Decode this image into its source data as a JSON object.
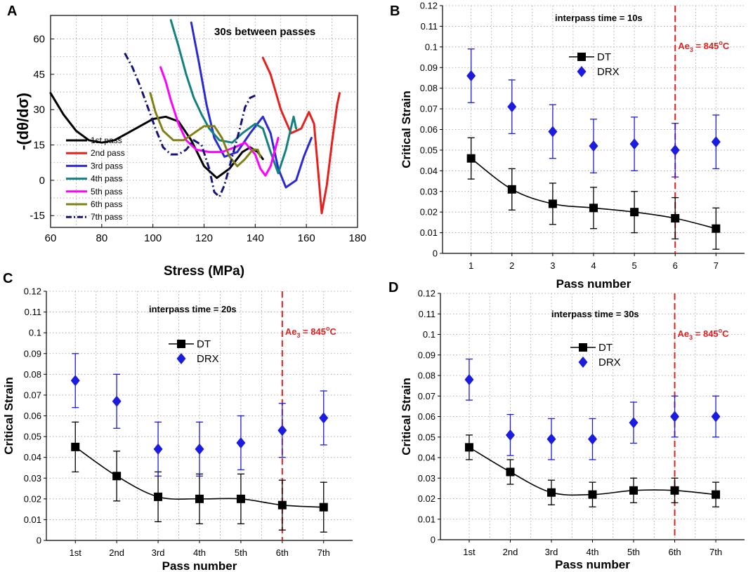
{
  "chart_data": [
    {
      "panel": "A",
      "type": "line",
      "title": "30s between passes",
      "xlabel": "Stress (MPa)",
      "ylabel": "-(dθ/dσ)",
      "xlim": [
        60,
        180
      ],
      "ylim": [
        -20,
        70
      ],
      "xticks": [
        "60",
        "80",
        "100",
        "120",
        "140",
        "160",
        "180"
      ],
      "yticks": [
        "-15",
        "0",
        "15",
        "30",
        "45",
        "60"
      ],
      "grid": true,
      "legend_position": "bottom-left",
      "series": [
        {
          "name": "1st pass",
          "color": "#000000",
          "dash": "solid",
          "x": [
            60,
            65,
            70,
            75,
            80,
            85,
            90,
            95,
            100,
            105,
            110,
            115,
            120,
            125,
            130,
            135,
            138,
            141,
            143
          ],
          "y": [
            37,
            28,
            21,
            17,
            16,
            17,
            20,
            23,
            26,
            27,
            25,
            17,
            6,
            1,
            5,
            12,
            14,
            12,
            9
          ]
        },
        {
          "name": "2nd pass",
          "color": "#e8201c",
          "dash": "solid",
          "x": [
            143,
            146,
            150,
            154,
            158,
            161,
            163,
            164.5,
            166,
            168,
            170,
            172,
            173
          ],
          "y": [
            52,
            45,
            30,
            20,
            22,
            29,
            24,
            5,
            -14,
            -2,
            16,
            32,
            37
          ]
        },
        {
          "name": "3rd pass",
          "color": "#2a2ad4",
          "dash": "solid",
          "x": [
            115,
            118,
            121,
            124,
            128,
            133,
            138,
            143,
            146,
            149,
            152,
            156,
            159,
            162
          ],
          "y": [
            67,
            50,
            32,
            18,
            10,
            12,
            20,
            27,
            20,
            5,
            -3,
            0,
            10,
            18
          ]
        },
        {
          "name": "4th pass",
          "color": "#138080",
          "dash": "solid",
          "x": [
            107,
            110,
            113,
            116,
            119,
            122,
            126,
            131,
            135,
            140,
            143,
            146,
            149,
            152,
            155,
            156
          ],
          "y": [
            68,
            57,
            45,
            35,
            28,
            22,
            17,
            16,
            20,
            24,
            22,
            12,
            3,
            13,
            27,
            22
          ]
        },
        {
          "name": "5th pass",
          "color": "#ff00ff",
          "dash": "solid",
          "x": [
            103,
            105,
            107,
            110,
            113,
            117,
            122,
            127,
            132,
            136,
            140,
            142,
            144,
            146,
            149
          ],
          "y": [
            48,
            42,
            34,
            24,
            17,
            13,
            12,
            12,
            14,
            16,
            11,
            5,
            2,
            6,
            18
          ]
        },
        {
          "name": "6th pass",
          "color": "#808014",
          "dash": "solid",
          "x": [
            99,
            101,
            104,
            108,
            112,
            116,
            120,
            124,
            127,
            130,
            133,
            136,
            139,
            141,
            142
          ],
          "y": [
            37,
            29,
            21,
            17,
            17,
            20,
            23,
            23,
            18,
            10,
            6,
            9,
            13,
            13,
            10
          ]
        },
        {
          "name": "7th pass",
          "color": "#14147a",
          "dash": "dashdot",
          "x": [
            89,
            92,
            95,
            98,
            101,
            104,
            107,
            110,
            113,
            116,
            119,
            122,
            124,
            126,
            128,
            131,
            134,
            136,
            138,
            140
          ],
          "y": [
            54,
            48,
            40,
            31,
            22,
            14,
            11,
            11,
            13,
            17,
            15,
            5,
            -5,
            -7,
            -2,
            10,
            22,
            31,
            35,
            36
          ]
        }
      ]
    },
    {
      "panel": "B",
      "type": "scatter",
      "annotation": "interpass time = 10s",
      "xlabel": "Pass number",
      "ylabel": "Critical Strain",
      "categories": [
        "1",
        "2",
        "3",
        "4",
        "5",
        "6",
        "7"
      ],
      "ylim": [
        0,
        0.12
      ],
      "yticks": [
        "0",
        "0.01",
        "0.02",
        "0.03",
        "0.04",
        "0.05",
        "0.06",
        "0.07",
        "0.08",
        "0.09",
        "0.1",
        "0.11",
        "0.12"
      ],
      "grid": true,
      "legend_position": "top-center",
      "ae3_line_at": 6,
      "ae3_label_main": "Ae",
      "ae3_label_sub": "3",
      "ae3_label_rest": " = 845",
      "ae3_label_sup": "o",
      "ae3_label_end": "C",
      "series": [
        {
          "name": "DT",
          "color": "#000000",
          "marker": "square",
          "line": true,
          "values": [
            0.046,
            0.031,
            0.024,
            0.022,
            0.02,
            0.017,
            0.012
          ],
          "errors": [
            0.01,
            0.01,
            0.01,
            0.01,
            0.01,
            0.01,
            0.01
          ]
        },
        {
          "name": "DRX",
          "color": "#1c1ce0",
          "marker": "diamond",
          "line": false,
          "values": [
            0.086,
            0.071,
            0.059,
            0.052,
            0.053,
            0.05,
            0.054
          ],
          "errors": [
            0.013,
            0.013,
            0.013,
            0.013,
            0.013,
            0.013,
            0.013
          ]
        }
      ]
    },
    {
      "panel": "C",
      "type": "scatter",
      "annotation": "interpass time = 20s",
      "xlabel": "Pass number",
      "ylabel": "Critical Strain",
      "categories": [
        "1st",
        "2nd",
        "3rd",
        "4th",
        "5th",
        "6th",
        "7th"
      ],
      "ylim": [
        0,
        0.12
      ],
      "yticks": [
        "0",
        "0.01",
        "0.02",
        "0.03",
        "0.04",
        "0.05",
        "0.06",
        "0.07",
        "0.08",
        "0.09",
        "0.1",
        "0.11",
        "0.12"
      ],
      "grid": true,
      "legend_position": "top-center",
      "ae3_line_at": 6,
      "ae3_label_main": "Ae",
      "ae3_label_sub": "3",
      "ae3_label_rest": " = 845",
      "ae3_label_sup": "o",
      "ae3_label_end": "C",
      "series": [
        {
          "name": "DT",
          "color": "#000000",
          "marker": "square",
          "line": true,
          "values": [
            0.045,
            0.031,
            0.021,
            0.02,
            0.02,
            0.017,
            0.016
          ],
          "errors": [
            0.012,
            0.012,
            0.012,
            0.012,
            0.012,
            0.012,
            0.012
          ]
        },
        {
          "name": "DRX",
          "color": "#1c1ce0",
          "marker": "diamond",
          "line": false,
          "values": [
            0.077,
            0.067,
            0.044,
            0.044,
            0.047,
            0.053,
            0.059
          ],
          "errors": [
            0.013,
            0.013,
            0.013,
            0.013,
            0.013,
            0.013,
            0.013
          ]
        }
      ]
    },
    {
      "panel": "D",
      "type": "scatter",
      "annotation": "interpass time = 30s",
      "xlabel": "Pass number",
      "ylabel": "Critical Strain",
      "categories": [
        "1st",
        "2nd",
        "3rd",
        "4th",
        "5th",
        "6th",
        "7th"
      ],
      "ylim": [
        0,
        0.12
      ],
      "yticks": [
        "0",
        "0.01",
        "0.02",
        "0.03",
        "0.04",
        "0.05",
        "0.06",
        "0.07",
        "0.08",
        "0.09",
        "0.1",
        "0.11",
        "0.12"
      ],
      "grid": true,
      "legend_position": "top-center",
      "ae3_line_at": 6,
      "ae3_label_main": "Ae",
      "ae3_label_sub": "3",
      "ae3_label_rest": " = 845",
      "ae3_label_sup": "o",
      "ae3_label_end": "C",
      "series": [
        {
          "name": "DT",
          "color": "#000000",
          "marker": "square",
          "line": true,
          "values": [
            0.045,
            0.033,
            0.023,
            0.022,
            0.024,
            0.024,
            0.022
          ],
          "errors": [
            0.006,
            0.006,
            0.006,
            0.006,
            0.006,
            0.006,
            0.006
          ]
        },
        {
          "name": "DRX",
          "color": "#1c1ce0",
          "marker": "diamond",
          "line": false,
          "values": [
            0.078,
            0.051,
            0.049,
            0.049,
            0.057,
            0.06,
            0.06
          ],
          "errors": [
            0.01,
            0.01,
            0.01,
            0.01,
            0.01,
            0.01,
            0.01
          ]
        }
      ]
    }
  ]
}
